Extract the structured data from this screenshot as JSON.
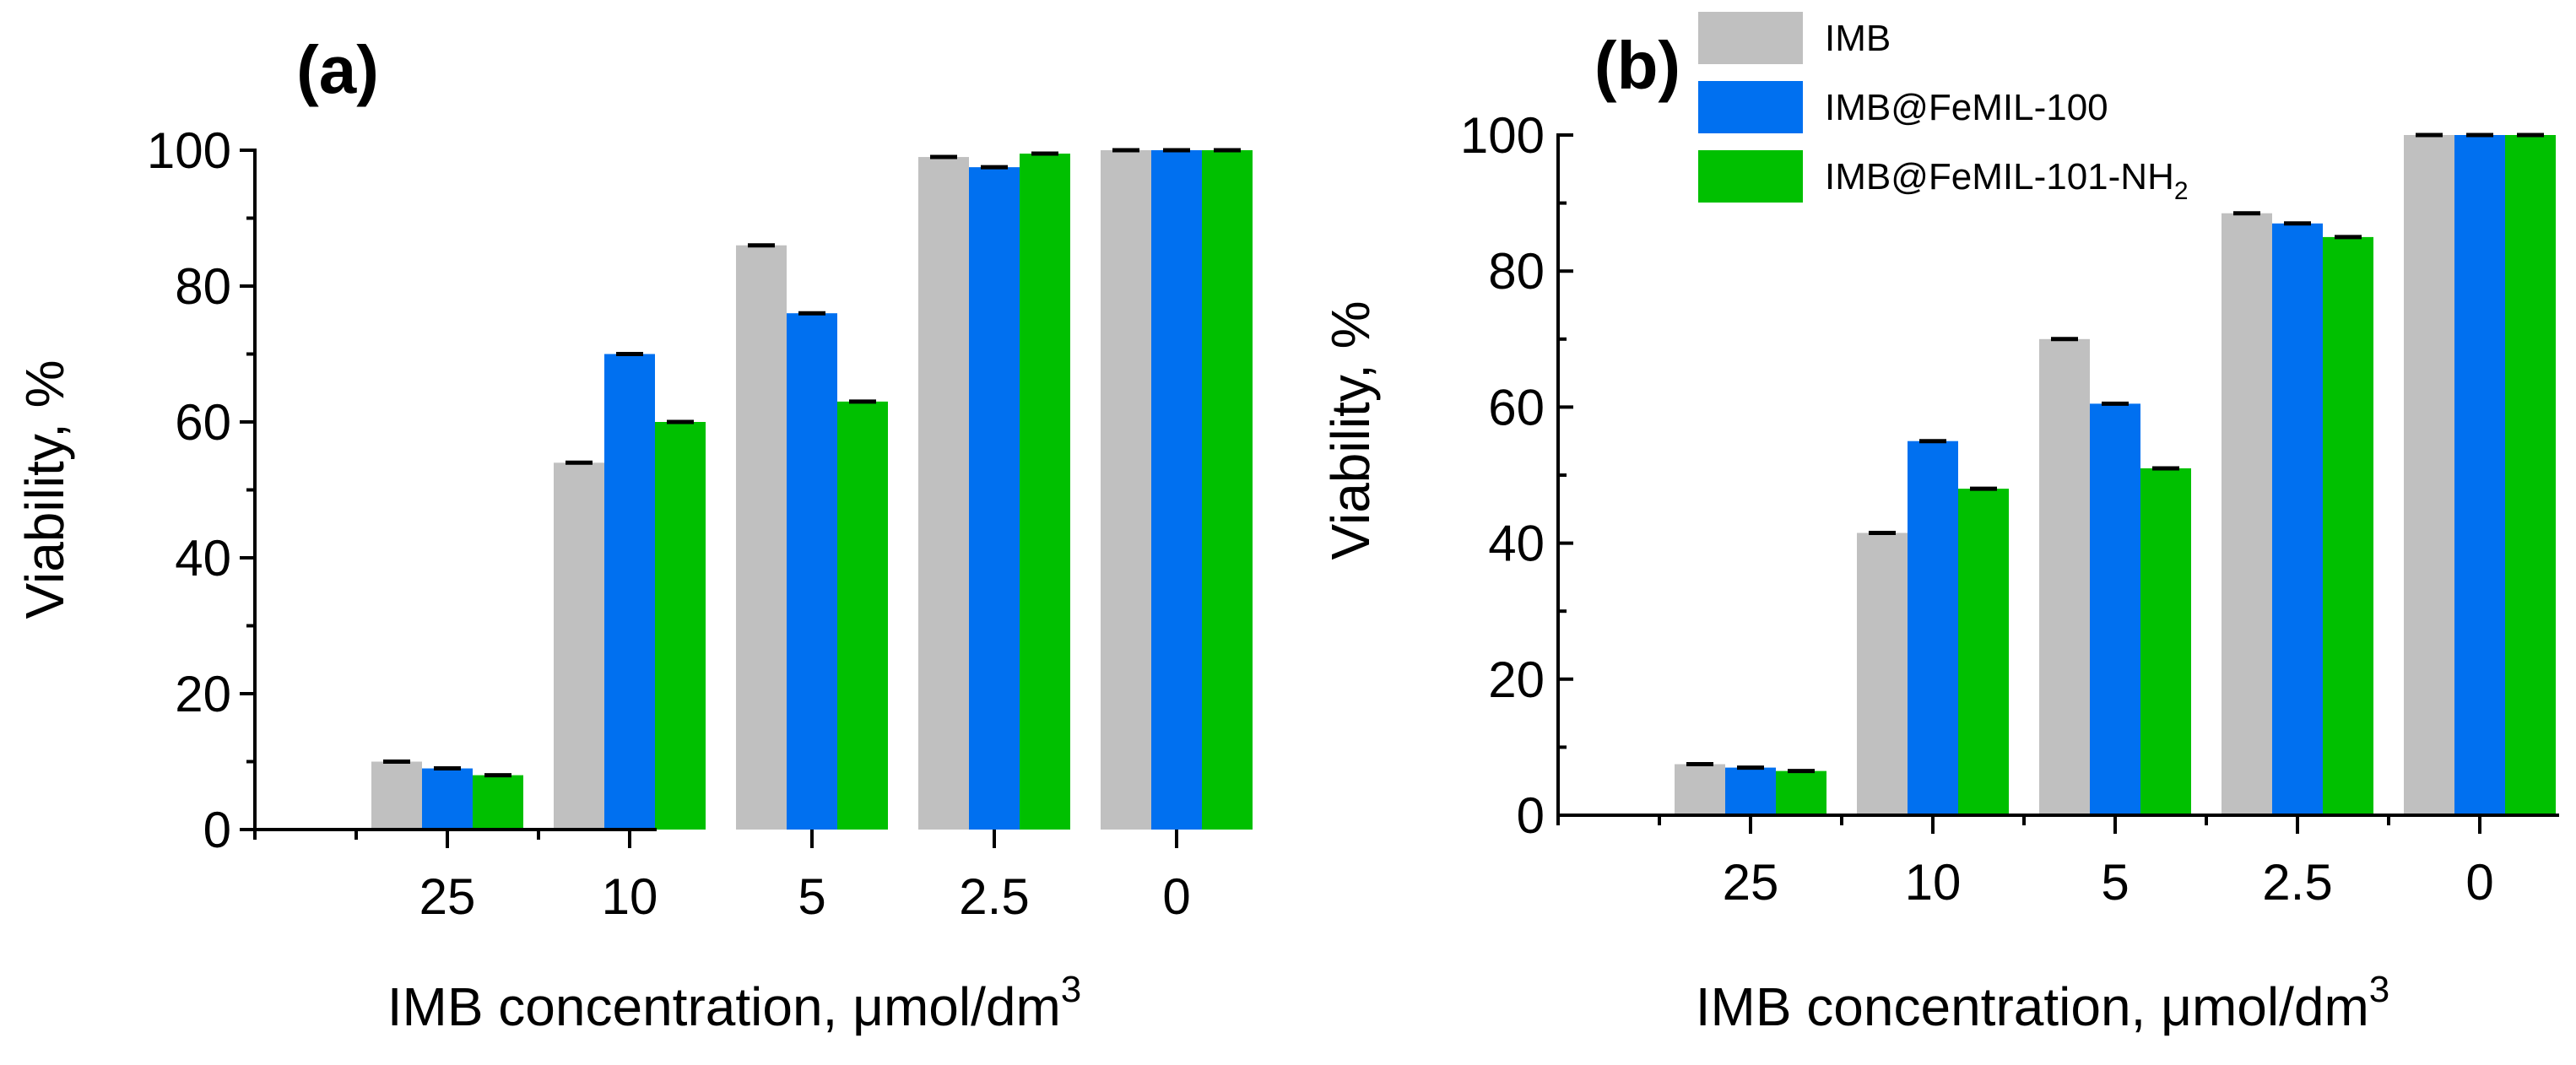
{
  "chart_data": [
    {
      "type": "bar",
      "panel_label": "(a)",
      "categories": [
        "25",
        "10",
        "5",
        "2.5",
        "0"
      ],
      "series": [
        {
          "name": "IMB",
          "color": "#c0c0c0",
          "values": [
            10,
            54,
            86,
            99,
            100
          ]
        },
        {
          "name": "IMB@FeMIL-100",
          "color": "#0070f0",
          "values": [
            9,
            70,
            76,
            97.5,
            100
          ]
        },
        {
          "name": "IMB@FeMIL-101-NH2",
          "color": "#00c000",
          "values": [
            8,
            60,
            63,
            99.5,
            100
          ]
        }
      ],
      "xlabel": "IMB concentration, μmol/dm",
      "xlabel_sup": "3",
      "ylabel": "Viability, %",
      "ylim": [
        0,
        100
      ],
      "yticks": [
        "0",
        "20",
        "40",
        "60",
        "80",
        "100"
      ]
    },
    {
      "type": "bar",
      "panel_label": "(b)",
      "categories": [
        "25",
        "10",
        "5",
        "2.5",
        "0"
      ],
      "series": [
        {
          "name": "IMB",
          "color": "#c0c0c0",
          "values": [
            7.5,
            41.5,
            70,
            88.5,
            100
          ]
        },
        {
          "name": "IMB@FeMIL-100",
          "color": "#0070f0",
          "values": [
            7,
            55,
            60.5,
            87,
            100
          ]
        },
        {
          "name": "IMB@FeMIL-101-NH2",
          "color": "#00c000",
          "values": [
            6.5,
            48,
            51,
            85,
            100
          ]
        }
      ],
      "xlabel": "IMB concentration, μmol/dm",
      "xlabel_sup": "3",
      "ylabel": "Viability, %",
      "ylim": [
        0,
        100
      ],
      "yticks": [
        "0",
        "20",
        "40",
        "60",
        "80",
        "100"
      ]
    }
  ],
  "legend": {
    "items": [
      {
        "label": "IMB",
        "sub": "",
        "color": "#c0c0c0"
      },
      {
        "label": "IMB@FeMIL-100",
        "sub": "",
        "color": "#0070f0"
      },
      {
        "label": "IMB@FeMIL-101-NH",
        "sub": "2",
        "color": "#00c000"
      }
    ]
  }
}
